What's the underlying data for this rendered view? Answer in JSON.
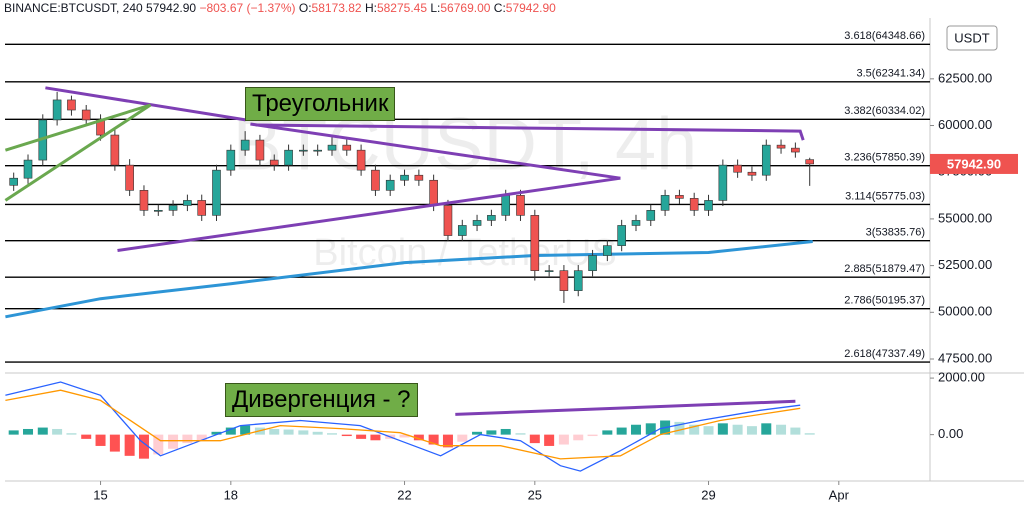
{
  "header": {
    "symbol": "BINANCE:BTCUSDT, 240",
    "price": "57942.90",
    "change": "−803.67 (−1.37%)",
    "ohlc": [
      {
        "label": "O:",
        "value": "58173.82"
      },
      {
        "label": "H:",
        "value": "58275.45"
      },
      {
        "label": "L:",
        "value": "56769.00"
      },
      {
        "label": "C:",
        "value": "57942.90"
      }
    ]
  },
  "chart_data": [
    {
      "type": "candlestick",
      "watermark": [
        "BTCUSDT, 4h",
        "Bitcoin / TetherUS"
      ],
      "axis_unit": "USDT",
      "colors": {
        "up": "#26a69a",
        "down": "#ef5350"
      },
      "x": [
        13,
        13.33,
        13.67,
        14,
        14.33,
        14.67,
        15,
        15.33,
        15.67,
        16,
        16.33,
        16.67,
        17,
        17.33,
        17.67,
        18,
        18.33,
        18.67,
        19,
        19.33,
        19.67,
        20,
        20.33,
        20.67,
        21,
        21.33,
        21.67,
        22,
        22.33,
        22.67,
        23,
        23.33,
        23.67,
        24,
        24.33,
        24.67,
        25,
        25.33,
        25.67,
        26,
        26.33,
        26.67,
        27,
        27.33,
        27.67,
        28,
        28.33,
        28.67,
        29,
        29.33,
        29.67,
        30,
        30.33,
        30.67,
        31,
        31.33
      ],
      "open": [
        56800,
        57180,
        58150,
        60300,
        61370,
        60830,
        60300,
        59490,
        57880,
        56530,
        55460,
        55460,
        55720,
        55990,
        55190,
        57610,
        58680,
        59220,
        58150,
        57880,
        58680,
        58680,
        58680,
        58950,
        58680,
        57610,
        56530,
        57070,
        57340,
        57070,
        55720,
        54110,
        54650,
        54920,
        55190,
        56260,
        55190,
        52230,
        52230,
        51160,
        52230,
        53040,
        53570,
        54650,
        54920,
        55460,
        56260,
        56100,
        55460,
        55990,
        57880,
        57500,
        57340,
        58950,
        58790,
        58173.82
      ],
      "high": [
        57480,
        58450,
        60600,
        61800,
        61600,
        61100,
        60600,
        59800,
        58200,
        56800,
        55760,
        56000,
        56300,
        56300,
        57900,
        58980,
        59700,
        59500,
        58450,
        58980,
        58980,
        58980,
        59400,
        59250,
        58980,
        57900,
        57370,
        57640,
        57640,
        57370,
        56020,
        54950,
        55220,
        55490,
        56560,
        56560,
        55490,
        52530,
        52530,
        52530,
        53340,
        53870,
        54950,
        55220,
        55760,
        56560,
        56560,
        56400,
        56290,
        58180,
        58180,
        57800,
        59250,
        59250,
        59090,
        58275.45
      ],
      "low": [
        56500,
        56880,
        57850,
        60000,
        60530,
        60000,
        59190,
        57580,
        56230,
        55160,
        55160,
        55160,
        55420,
        54890,
        54890,
        57310,
        58380,
        57850,
        57580,
        57580,
        58380,
        58380,
        58380,
        58380,
        57310,
        56230,
        56230,
        56770,
        56770,
        55420,
        53810,
        53810,
        54350,
        54620,
        54890,
        54890,
        51700,
        51930,
        50500,
        50860,
        51930,
        52740,
        53270,
        54350,
        54620,
        55160,
        55800,
        55160,
        55160,
        55690,
        57200,
        57040,
        57040,
        58490,
        58280,
        56769
      ],
      "close": [
        57180,
        58150,
        60300,
        61370,
        60830,
        60300,
        59490,
        57880,
        56530,
        55460,
        55460,
        55720,
        55990,
        55190,
        57610,
        58680,
        59220,
        58150,
        57880,
        58680,
        58680,
        58680,
        58950,
        58680,
        57610,
        56530,
        57070,
        57340,
        57070,
        55720,
        54110,
        54650,
        54920,
        55190,
        56260,
        55190,
        52230,
        52230,
        51160,
        52230,
        53040,
        53570,
        54650,
        54920,
        55460,
        56260,
        56100,
        55460,
        55990,
        57880,
        57500,
        57340,
        58950,
        58790,
        58580,
        57942.9
      ],
      "series": [
        {
          "color": "#2d95d6",
          "x": [
            12.81,
            15,
            18,
            22,
            25,
            29,
            31.4
          ],
          "values": [
            49760,
            50730,
            51530,
            52660,
            53040,
            53200,
            53790
          ]
        }
      ],
      "xlim": [
        12.8,
        34.1
      ],
      "ylim": [
        46750,
        65650
      ],
      "yticks": [
        {
          "value": 47500,
          "label": "47500.00"
        },
        {
          "value": 50000,
          "label": "50000.00"
        },
        {
          "value": 52500,
          "label": "52500.00"
        },
        {
          "value": 55000,
          "label": "55000.00"
        },
        {
          "value": 57500,
          "label": "57500.00"
        },
        {
          "value": 60000,
          "label": "60000.00"
        },
        {
          "value": 62500,
          "label": "62500.00"
        }
      ],
      "levels": [
        {
          "value": 64348.66,
          "label": "3.618(64348.66)"
        },
        {
          "value": 62341.34,
          "label": "3.5(62341.34)"
        },
        {
          "value": 60334.02,
          "label": "3.382(60334.02)"
        },
        {
          "value": 57850.39,
          "label": "3.236(57850.39)"
        },
        {
          "value": 55775.03,
          "label": "3.114(55775.03)"
        },
        {
          "value": 53835.76,
          "label": "3(53835.76)"
        },
        {
          "value": 51879.47,
          "label": "2.885(51879.47)"
        },
        {
          "value": 50195.37,
          "label": "2.786(50195.37)"
        },
        {
          "value": 47337.49,
          "label": "2.618(47337.49)"
        }
      ],
      "drawings": [
        {
          "color": "#7e3fb4",
          "x": [
            13.73,
            18.34
          ],
          "y": [
            62020,
            60300
          ]
        },
        {
          "color": "#7e3fb4",
          "x": [
            18.45,
            26.97
          ],
          "y": [
            60080,
            57180
          ]
        },
        {
          "color": "#7e3fb4",
          "x": [
            15.39,
            26.97
          ],
          "y": [
            53310,
            57180
          ]
        },
        {
          "color": "#7e3fb4",
          "x": [
            18.57,
            31.11,
            31.18
          ],
          "y": [
            60030,
            59700,
            59220
          ]
        },
        {
          "color": "#6aa84f",
          "x": [
            12.81,
            16.15
          ],
          "y": [
            55990,
            61100
          ]
        },
        {
          "color": "#6aa84f",
          "x": [
            12.81,
            16.15
          ],
          "y": [
            58680,
            61100
          ]
        }
      ],
      "annotation": "Треугольник"
    },
    {
      "type": "macd",
      "colors": {
        "up": "#26a69a",
        "up_fading": "#b2dfdb",
        "down": "#ff5252",
        "down_fading": "#ffcdd2"
      },
      "x": [
        13,
        13.33,
        13.67,
        14,
        14.33,
        14.67,
        15,
        15.33,
        15.67,
        16,
        16.33,
        16.67,
        17,
        17.33,
        17.67,
        18,
        18.33,
        18.67,
        19,
        19.33,
        19.67,
        20,
        20.33,
        20.67,
        21,
        21.33,
        21.67,
        22,
        22.33,
        22.67,
        23,
        23.33,
        23.67,
        24,
        24.33,
        24.67,
        25,
        25.33,
        25.67,
        26,
        26.33,
        26.67,
        27,
        27.33,
        27.67,
        28,
        28.33,
        28.67,
        29,
        29.33,
        29.67,
        30,
        30.33,
        30.67,
        31,
        31.33
      ],
      "values": [
        150,
        200,
        250,
        200,
        50,
        -150,
        -400,
        -600,
        -750,
        -850,
        -700,
        -500,
        -300,
        -200,
        100,
        250,
        320,
        250,
        200,
        180,
        150,
        100,
        50,
        -50,
        -150,
        -200,
        -150,
        -100,
        -200,
        -350,
        -450,
        -250,
        100,
        150,
        200,
        50,
        -300,
        -400,
        -350,
        -200,
        -50,
        150,
        250,
        350,
        400,
        500,
        450,
        350,
        300,
        400,
        350,
        300,
        400,
        350,
        250,
        50
      ],
      "series": [
        {
          "color": "#2962ff",
          "x": [
            12.81,
            14.08,
            15,
            15.92,
            16.38,
            17.3,
            18.22,
            19.6,
            20.98,
            21.9,
            22.83,
            23.75,
            24.67,
            25.59,
            26.05,
            26.97,
            27.89,
            28.81,
            30.19,
            31.11
          ],
          "values": [
            1390,
            1860,
            1390,
            -214,
            -750,
            -214,
            320,
            500,
            320,
            -214,
            -750,
            0,
            -214,
            -1100,
            -1290,
            -570,
            214,
            500,
            860,
            1040
          ]
        },
        {
          "color": "#ff9800",
          "x": [
            12.81,
            14.08,
            15,
            16.38,
            17.76,
            19.14,
            20.52,
            21.9,
            22.83,
            24.21,
            25.59,
            26.97,
            27.89,
            29.27,
            31.11
          ],
          "values": [
            1210,
            1570,
            1210,
            -214,
            -214,
            320,
            214,
            70,
            -390,
            -390,
            -860,
            -750,
            0,
            500,
            930
          ]
        }
      ],
      "xlim": [
        12.8,
        34.1
      ],
      "xticks": [
        15,
        18,
        22,
        25,
        29,
        {
          "value": 32,
          "label": "Apr"
        }
      ],
      "ylim": [
        -1640,
        2180
      ],
      "yticks": [
        {
          "value": 0,
          "label": "0.00"
        },
        {
          "value": 2000,
          "label": "2000.00"
        }
      ],
      "drawings": [
        {
          "color": "#7e3fb4",
          "x": [
            23.17,
            31.0
          ],
          "y": [
            714,
            1180
          ]
        }
      ],
      "annotation": "Дивергенция - ?"
    }
  ]
}
